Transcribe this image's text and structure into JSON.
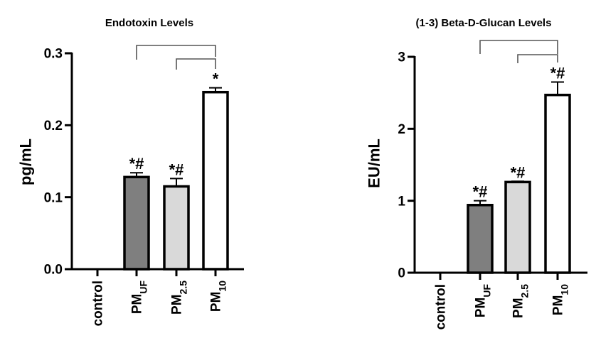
{
  "chart_data": [
    {
      "type": "bar",
      "title": "Endotoxin Levels",
      "xlabel": "",
      "ylabel": "pg/mL",
      "ylim": [
        0,
        0.3
      ],
      "yticks": [
        "0.0",
        "0.1",
        "0.2",
        "0.3"
      ],
      "ytick_values": [
        0,
        0.1,
        0.2,
        0.3
      ],
      "categories": [
        {
          "main": "control",
          "sub": ""
        },
        {
          "main": "PM",
          "sub": "UF"
        },
        {
          "main": "PM",
          "sub": "2.5"
        },
        {
          "main": "PM",
          "sub": "10"
        }
      ],
      "values": [
        0,
        0.128,
        0.115,
        0.246
      ],
      "errors": [
        0,
        0.006,
        0.011,
        0.006
      ],
      "fills": [
        "#ffffff",
        "#7f7f7f",
        "#d9d9d9",
        "#ffffff"
      ],
      "annotations": [
        "",
        "*#",
        "*#",
        "*"
      ],
      "comparisons": [
        [
          1,
          3
        ],
        [
          2,
          3
        ]
      ],
      "grid": false
    },
    {
      "type": "bar",
      "title": "(1-3) Beta-D-Glucan Levels",
      "xlabel": "",
      "ylabel": "EU/mL",
      "ylim": [
        0,
        3
      ],
      "yticks": [
        "0",
        "1",
        "2",
        "3"
      ],
      "ytick_values": [
        0,
        1,
        2,
        3
      ],
      "categories": [
        {
          "main": "control",
          "sub": ""
        },
        {
          "main": "PM",
          "sub": "UF"
        },
        {
          "main": "PM",
          "sub": "2.5"
        },
        {
          "main": "PM",
          "sub": "10"
        }
      ],
      "values": [
        0,
        0.94,
        1.26,
        2.47
      ],
      "errors": [
        0,
        0.06,
        0.01,
        0.18
      ],
      "fills": [
        "#ffffff",
        "#7f7f7f",
        "#d9d9d9",
        "#ffffff"
      ],
      "annotations": [
        "",
        "*#",
        "*#",
        "*#"
      ],
      "comparisons": [
        [
          1,
          3
        ],
        [
          2,
          3
        ]
      ],
      "grid": false
    }
  ]
}
